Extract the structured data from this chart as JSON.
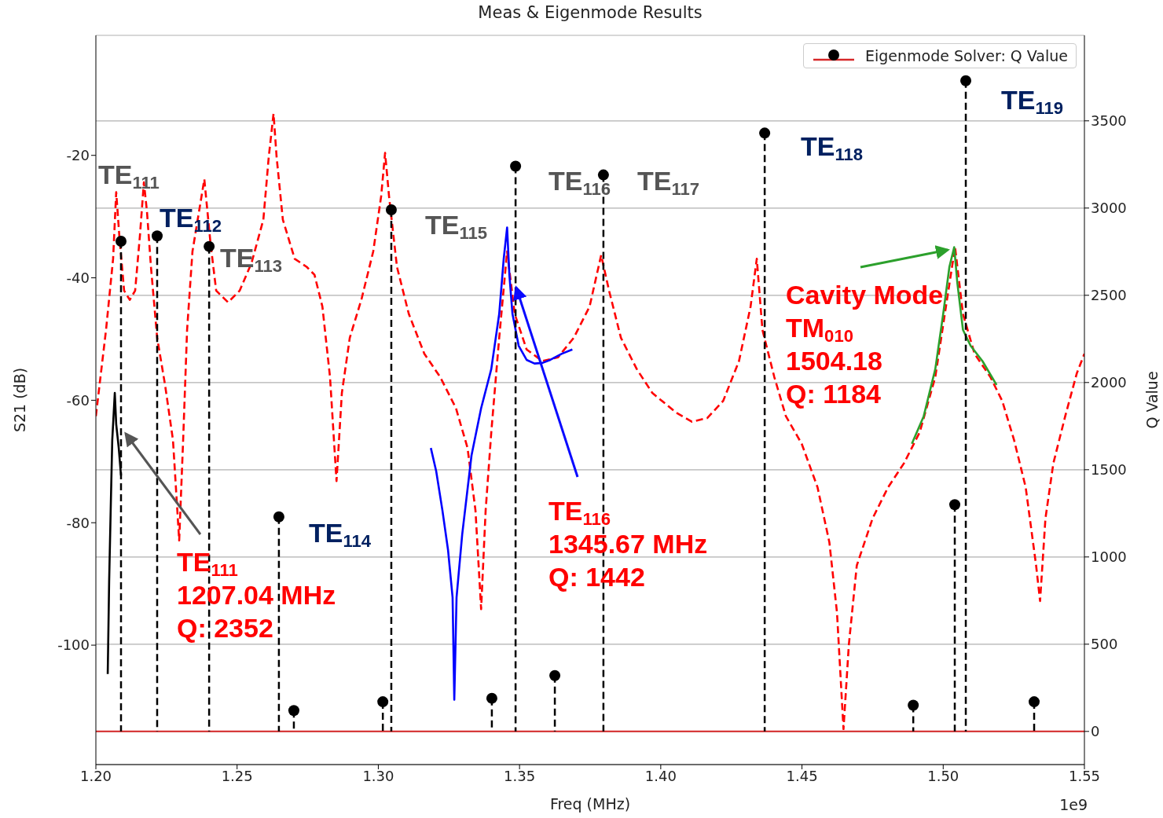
{
  "chart_data": {
    "type": "line",
    "title": "Meas & Eigenmode Results",
    "xlabel": "Freq (MHz)",
    "ylabel": "S21 (dB)",
    "y2label": "Q Value",
    "xlim": [
      1.2,
      1.55
    ],
    "xticks": [
      {
        "value": 1.2,
        "label": "1.20"
      },
      {
        "value": 1.25,
        "label": "1.25"
      },
      {
        "value": 1.3,
        "label": "1.30"
      },
      {
        "value": 1.35,
        "label": "1.35"
      },
      {
        "value": 1.4,
        "label": "1.40"
      },
      {
        "value": 1.45,
        "label": "1.45"
      },
      {
        "value": 1.5,
        "label": "1.50"
      },
      {
        "value": 1.55,
        "label": "1.55"
      }
    ],
    "ylim": [
      -119.5,
      -0.4
    ],
    "yticks": [
      -100,
      -80,
      -60,
      -40,
      -20
    ],
    "y2lim": [
      -190,
      3990
    ],
    "y2ticks": [
      0,
      500,
      1000,
      1500,
      2000,
      2500,
      3000,
      3500
    ],
    "grid": "y2",
    "legend": "top right",
    "ref_lines": [
      {
        "axis": "y2",
        "value": 0,
        "color": "#d62728"
      }
    ],
    "series": [
      {
        "color": "#ff0000",
        "line_style": "dashed",
        "x": [
          1.2,
          1.2036,
          1.2061,
          1.2072,
          1.2083,
          1.21,
          1.212,
          1.2139,
          1.2156,
          1.217,
          1.2181,
          1.2195,
          1.2217,
          1.2245,
          1.2273,
          1.2295,
          1.2309,
          1.2323,
          1.2342,
          1.2384,
          1.2406,
          1.2426,
          1.2468,
          1.2509,
          1.2551,
          1.2593,
          1.2612,
          1.2629,
          1.264,
          1.2662,
          1.2704,
          1.2746,
          1.2774,
          1.2802,
          1.2829,
          1.2852,
          1.2871,
          1.2899,
          1.2941,
          1.2982,
          1.301,
          1.3024,
          1.3038,
          1.3066,
          1.3108,
          1.3163,
          1.3219,
          1.3275,
          1.3316,
          1.3344,
          1.3364,
          1.338,
          1.34,
          1.3428,
          1.3456,
          1.3483,
          1.3525,
          1.3581,
          1.3636,
          1.3692,
          1.3748,
          1.3789,
          1.3817,
          1.3859,
          1.3915,
          1.397,
          1.4054,
          1.411,
          1.4165,
          1.4221,
          1.4277,
          1.4318,
          1.434,
          1.436,
          1.4402,
          1.4443,
          1.4499,
          1.4555,
          1.4597,
          1.4624,
          1.4647,
          1.4666,
          1.4694,
          1.475,
          1.4805,
          1.4861,
          1.4917,
          1.4972,
          1.5014,
          1.5042,
          1.507,
          1.5111,
          1.5167,
          1.5209,
          1.5251,
          1.5292,
          1.5329,
          1.5343,
          1.5362,
          1.539,
          1.5432,
          1.5473,
          1.55
        ],
        "values": [
          -62.6,
          -48.5,
          -36.9,
          -26.0,
          -33.1,
          -42.1,
          -43.6,
          -42.1,
          -33.1,
          -24.4,
          -29.2,
          -38.2,
          -49.8,
          -57.5,
          -66.5,
          -82.9,
          -66.5,
          -48.5,
          -35.7,
          -23.9,
          -34.4,
          -42.1,
          -44.0,
          -42.1,
          -37.6,
          -30.5,
          -20.3,
          -13.2,
          -20.3,
          -30.5,
          -36.9,
          -38.2,
          -39.5,
          -44.7,
          -56.2,
          -73.2,
          -58.8,
          -49.8,
          -43.4,
          -35.7,
          -26.7,
          -19.6,
          -26.7,
          -38.2,
          -45.9,
          -52.4,
          -56.2,
          -61.3,
          -67.8,
          -78.0,
          -94.1,
          -78.0,
          -65.2,
          -49.8,
          -35.7,
          -45.9,
          -51.7,
          -53.6,
          -53.0,
          -49.8,
          -44.7,
          -36.3,
          -42.1,
          -49.8,
          -54.9,
          -58.8,
          -62.0,
          -63.5,
          -62.9,
          -60.1,
          -53.6,
          -44.7,
          -36.9,
          -48.5,
          -56.2,
          -62.6,
          -67.1,
          -74.2,
          -83.2,
          -94.7,
          -113.7,
          -99.9,
          -87.0,
          -79.3,
          -74.2,
          -70.3,
          -65.2,
          -56.2,
          -43.4,
          -35.0,
          -45.9,
          -52.4,
          -56.2,
          -60.1,
          -66.5,
          -74.2,
          -87.0,
          -92.8,
          -79.3,
          -70.3,
          -62.6,
          -55.6,
          -52.4
        ]
      },
      {
        "color": "#000000",
        "line_style": "solid",
        "x": [
          1.2042,
          1.2047,
          1.2053,
          1.2058,
          1.2067,
          1.2072,
          1.2081,
          1.2089
        ],
        "values": [
          -104.7,
          -89.6,
          -76.8,
          -66.5,
          -58.8,
          -63.9,
          -67.8,
          -72.3
        ]
      },
      {
        "color": "#0000ff",
        "line_style": "solid",
        "x": [
          1.3186,
          1.3205,
          1.3227,
          1.3247,
          1.3263,
          1.3269,
          1.3277,
          1.3297,
          1.333,
          1.3364,
          1.34,
          1.3428,
          1.3444,
          1.3456,
          1.3464,
          1.3475,
          1.3497,
          1.3525,
          1.3553,
          1.3581,
          1.3609,
          1.365,
          1.3687
        ],
        "values": [
          -67.8,
          -71.6,
          -78.0,
          -84.5,
          -92.2,
          -108.9,
          -92.2,
          -81.9,
          -69.0,
          -61.3,
          -54.9,
          -45.9,
          -36.9,
          -31.8,
          -39.5,
          -45.9,
          -51.1,
          -53.4,
          -54.0,
          -53.9,
          -53.4,
          -52.4,
          -51.7
        ]
      },
      {
        "color": "#2ca02c",
        "line_style": "solid",
        "x": [
          1.4889,
          1.4931,
          1.4972,
          1.5,
          1.5022,
          1.5039,
          1.505,
          1.507,
          1.5097,
          1.5139,
          1.5189
        ],
        "values": [
          -67.1,
          -62.6,
          -54.9,
          -45.9,
          -38.2,
          -35.0,
          -40.8,
          -48.5,
          -51.1,
          -53.6,
          -57.5
        ]
      },
      {
        "type": "lollipop",
        "name": "Eigenmode Solver: Q Value",
        "axis": "y2",
        "color": "#000000",
        "marker": "circle",
        "line_style": "dashed",
        "x": [
          1.2089,
          1.2217,
          1.2401,
          1.2648,
          1.2701,
          1.3016,
          1.3046,
          1.3402,
          1.3486,
          1.3625,
          1.3797,
          1.4368,
          1.4894,
          1.5041,
          1.508,
          1.5322
        ],
        "values": [
          2810,
          2840,
          2780,
          1230,
          120,
          170,
          2990,
          190,
          3240,
          320,
          3190,
          3430,
          150,
          1300,
          3730,
          170
        ]
      }
    ],
    "annotations": [
      "TE$_{111}$",
      "TE$_{112}$",
      "TE$_{113}$",
      "TE$_{114}$",
      "TE$_{115}$",
      "TE$_{116}$",
      "TE$_{117}$",
      "TE$_{118}$",
      "TE$_{119}$",
      "TE$_{111}$\n1207.04 MHz\nQ: 2352",
      "TE$_{116}$\n1345.67 MHz\nQ: 1442",
      "Cavity Mode\nTM$_{010}$\n1504.18\nQ: 1184",
      "1e9"
    ]
  }
}
